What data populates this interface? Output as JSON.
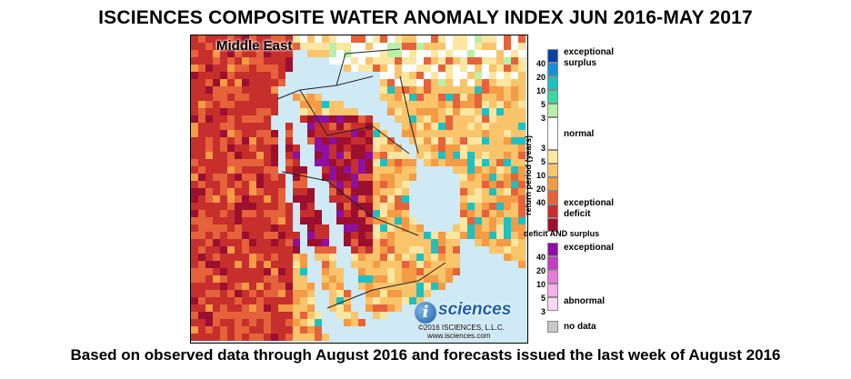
{
  "title": "ISCIENCES COMPOSITE WATER ANOMALY INDEX JUN 2016-MAY 2017",
  "caption": "Based on observed data through August 2016 and forecasts issued the last week of August 2016",
  "map": {
    "region_label": "Middle East",
    "logo": {
      "mark": "i",
      "word": "sciences",
      "copyright": "©2016 ISCIENCES, L.L.C.",
      "url": "www.isciences.com"
    }
  },
  "legend": {
    "axis_label": "return period (years)",
    "surplus_label_1": "exceptional",
    "surplus_label_2": "surplus",
    "normal_label": "normal",
    "deficit_label_1": "exceptional",
    "deficit_label_2": "deficit",
    "surplus_ticks": [
      "40",
      "20",
      "10",
      "5",
      "3"
    ],
    "deficit_ticks": [
      "3",
      "5",
      "10",
      "20",
      "40"
    ],
    "both_title": "deficit AND surplus",
    "both_top_label": "exceptional",
    "both_bottom_label": "abnormal",
    "both_ticks": [
      "40",
      "20",
      "10",
      "5",
      "3"
    ],
    "nodata_label": "no data",
    "colors": {
      "surplus": [
        "#0a3fa5",
        "#1a8fd6",
        "#1fc0c0",
        "#3fd6a0",
        "#b8f0a8"
      ],
      "normal": "#ffffff",
      "deficit": [
        "#fde6a0",
        "#f9c46a",
        "#f59a45",
        "#e5623a",
        "#c62f2c",
        "#9c0f2e"
      ],
      "both": [
        "#8d10a0",
        "#c23cc4",
        "#e87ad8",
        "#f6b0ea",
        "#fcd8f4"
      ],
      "nodata": "#c8c8c8",
      "water": "#cfe9f5"
    }
  }
}
